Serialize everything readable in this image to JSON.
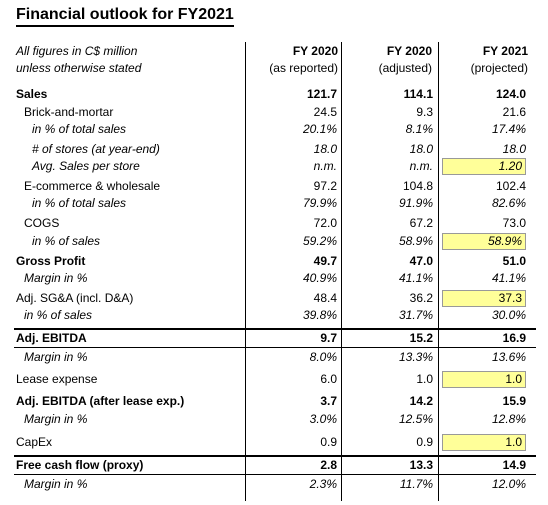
{
  "title": "Financial outlook for FY2021",
  "header": {
    "note_line1": "All figures in C$ million",
    "note_line2": "unless otherwise stated",
    "columns": [
      {
        "top": "FY 2020",
        "bottom": "(as reported)"
      },
      {
        "top": "FY 2020",
        "bottom": "(adjusted)"
      },
      {
        "top": "FY 2021",
        "bottom": "(projected)"
      }
    ]
  },
  "rows": [
    {
      "label": "Sales",
      "values": [
        "121.7",
        "114.1",
        "124.0"
      ],
      "style": "bold"
    },
    {
      "label": "Brick-and-mortar",
      "values": [
        "24.5",
        "9.3",
        "21.6"
      ],
      "style": "ind1"
    },
    {
      "label": "in % of total sales",
      "values": [
        "20.1%",
        "8.1%",
        "17.4%"
      ],
      "style": "ind2 ital"
    },
    {
      "label": "# of stores (at year-end)",
      "values": [
        "18.0",
        "18.0",
        "18.0"
      ],
      "style": "ind2 ital"
    },
    {
      "label": "Avg. Sales per store",
      "values": [
        "n.m.",
        "n.m.",
        "1.20"
      ],
      "style": "ind2 ital",
      "highlight": true
    },
    {
      "label": "E-commerce & wholesale",
      "values": [
        "97.2",
        "104.8",
        "102.4"
      ],
      "style": "ind1"
    },
    {
      "label": "in % of total sales",
      "values": [
        "79.9%",
        "91.9%",
        "82.6%"
      ],
      "style": "ind2 ital"
    },
    {
      "label": "COGS",
      "values": [
        "72.0",
        "67.2",
        "73.0"
      ],
      "style": "ind1"
    },
    {
      "label": "in % of sales",
      "values": [
        "59.2%",
        "58.9%",
        "58.9%"
      ],
      "style": "ind2 ital",
      "highlight": true
    },
    {
      "label": "Gross Profit",
      "values": [
        "49.7",
        "47.0",
        "51.0"
      ],
      "style": "bold"
    },
    {
      "label": "Margin in %",
      "values": [
        "40.9%",
        "41.1%",
        "41.1%"
      ],
      "style": "ind1 ital"
    },
    {
      "label": "Adj. SG&A (incl. D&A)",
      "values": [
        "48.4",
        "36.2",
        "37.3"
      ],
      "style": "",
      "highlight": true
    },
    {
      "label": "in % of sales",
      "values": [
        "39.8%",
        "31.7%",
        "30.0%"
      ],
      "style": "ind1 ital"
    },
    {
      "label": "Adj. EBITDA",
      "values": [
        "9.7",
        "15.2",
        "16.9"
      ],
      "style": "bold"
    },
    {
      "label": "Margin in %",
      "values": [
        "8.0%",
        "13.3%",
        "13.6%"
      ],
      "style": "ind1 ital"
    },
    {
      "label": "Lease expense",
      "values": [
        "6.0",
        "1.0",
        "1.0"
      ],
      "style": "",
      "highlight": true
    },
    {
      "label": "Adj. EBITDA (after lease exp.)",
      "values": [
        "3.7",
        "14.2",
        "15.9"
      ],
      "style": "bold"
    },
    {
      "label": "Margin in %",
      "values": [
        "3.0%",
        "12.5%",
        "12.8%"
      ],
      "style": "ind1 ital"
    },
    {
      "label": "CapEx",
      "values": [
        "0.9",
        "0.9",
        "1.0"
      ],
      "style": "",
      "highlight": true
    },
    {
      "label": "Free cash flow (proxy)",
      "values": [
        "2.8",
        "13.3",
        "14.9"
      ],
      "style": "bold"
    },
    {
      "label": "Margin in %",
      "values": [
        "2.3%",
        "11.7%",
        "12.0%"
      ],
      "style": "ind1 ital"
    }
  ],
  "colors": {
    "highlight": "#ffff99"
  }
}
